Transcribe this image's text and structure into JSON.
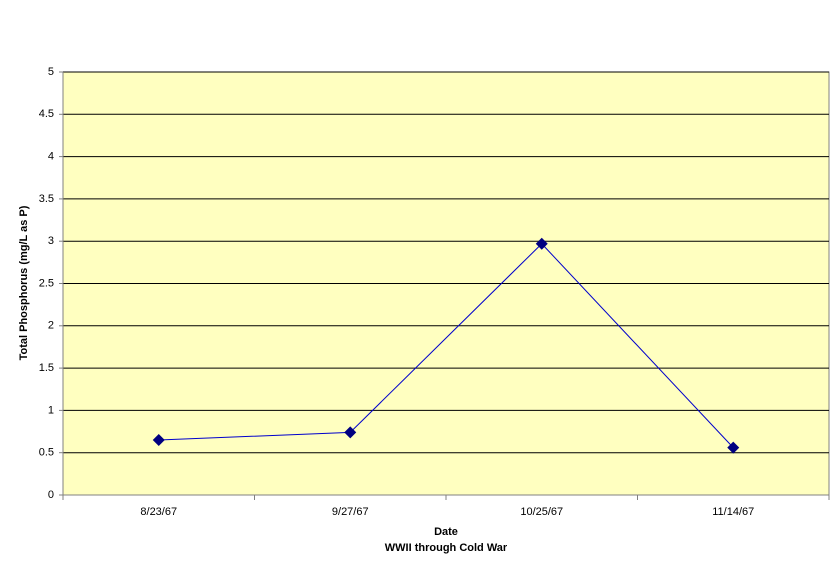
{
  "chart_data": {
    "type": "line",
    "categories": [
      "8/23/67",
      "9/27/67",
      "10/25/67",
      "11/14/67"
    ],
    "values": [
      0.65,
      0.74,
      2.97,
      0.56
    ],
    "color": "#0000cc",
    "marker_color": "#000080",
    "ylabel": "Total Phosphorus (mg/L as P)",
    "xlabel": "Date",
    "xlabel_sub": "WWII through Cold War",
    "ylim": [
      0,
      5
    ],
    "yticks": [
      0,
      0.5,
      1,
      1.5,
      2,
      2.5,
      3,
      3.5,
      4,
      4.5,
      5
    ],
    "grid": true,
    "plot_background": "#ffffc0"
  }
}
